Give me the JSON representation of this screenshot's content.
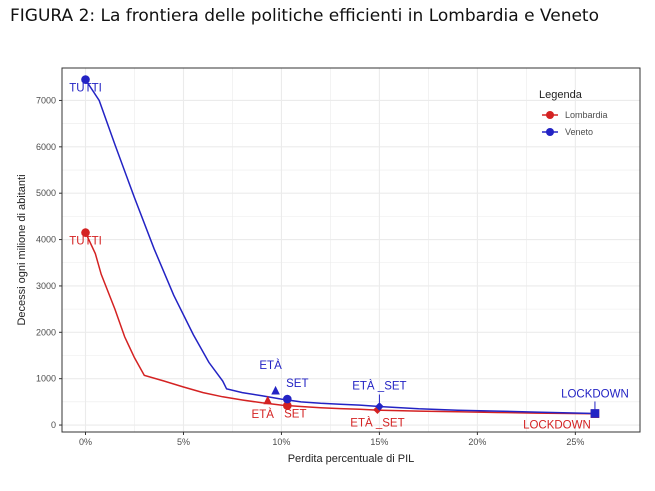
{
  "figure_title": "FIGURA 2: La frontiera delle politiche efficienti in Lombardia e Veneto",
  "colors": {
    "lombardia": "#d42222",
    "veneto": "#2323c4",
    "grid": "#ebebeb",
    "panel_border": "#333333"
  },
  "chart_data": {
    "type": "line",
    "title": "FIGURA 2: La frontiera delle politiche efficienti in Lombardia e Veneto",
    "xlabel": "Perdita percentuale di PIL",
    "ylabel": "Decessi ogni milione di abitanti",
    "xlim": [
      -1.2,
      28.3
    ],
    "ylim": [
      -150,
      7700
    ],
    "x_ticks": [
      0,
      5,
      10,
      15,
      20,
      25
    ],
    "x_tick_labels": [
      "0%",
      "5%",
      "10%",
      "15%",
      "20%",
      "25%"
    ],
    "y_ticks": [
      0,
      1000,
      2000,
      3000,
      4000,
      5000,
      6000,
      7000
    ],
    "y_tick_labels": [
      "0",
      "1000",
      "2000",
      "3000",
      "4000",
      "5000",
      "6000",
      "7000"
    ],
    "legend": {
      "title": "Legenda",
      "position": "top-right",
      "entries": [
        "Lombardia",
        "Veneto"
      ]
    },
    "series": [
      {
        "name": "Lombardia",
        "color": "#d42222",
        "curve": [
          [
            0,
            4150
          ],
          [
            0.5,
            3700
          ],
          [
            0.8,
            3250
          ],
          [
            1.5,
            2500
          ],
          [
            2,
            1900
          ],
          [
            2.5,
            1450
          ],
          [
            3,
            1070
          ],
          [
            4,
            950
          ],
          [
            5,
            820
          ],
          [
            6,
            700
          ],
          [
            7,
            610
          ],
          [
            8,
            540
          ],
          [
            9,
            480
          ],
          [
            10,
            430
          ],
          [
            11,
            400
          ],
          [
            12,
            375
          ],
          [
            13,
            355
          ],
          [
            14,
            340
          ],
          [
            15,
            320
          ],
          [
            17,
            300
          ],
          [
            19,
            285
          ],
          [
            21,
            270
          ],
          [
            23,
            258
          ],
          [
            26,
            245
          ]
        ],
        "points": [
          {
            "label": "TUTTI",
            "x": 0,
            "y": 4150,
            "marker": "circle"
          },
          {
            "label": "ETÀ",
            "x": 9.3,
            "y": 520,
            "marker": "triangle"
          },
          {
            "label": "SET",
            "x": 10.3,
            "y": 420,
            "marker": "circle"
          },
          {
            "label": "ETÀ _SET",
            "x": 14.9,
            "y": 330,
            "marker": "diamond"
          },
          {
            "label": "LOCKDOWN",
            "x": 26,
            "y": 245,
            "marker": "square"
          }
        ]
      },
      {
        "name": "Veneto",
        "color": "#2323c4",
        "curve": [
          [
            0,
            7450
          ],
          [
            0.7,
            7000
          ],
          [
            1.5,
            6050
          ],
          [
            2.5,
            4900
          ],
          [
            3.5,
            3800
          ],
          [
            4.5,
            2800
          ],
          [
            5.5,
            1950
          ],
          [
            6.3,
            1350
          ],
          [
            7,
            950
          ],
          [
            7.2,
            780
          ],
          [
            8,
            700
          ],
          [
            9,
            630
          ],
          [
            10,
            560
          ],
          [
            11,
            500
          ],
          [
            12,
            470
          ],
          [
            13,
            450
          ],
          [
            14,
            430
          ],
          [
            15,
            400
          ],
          [
            17,
            350
          ],
          [
            19,
            320
          ],
          [
            21,
            300
          ],
          [
            23,
            280
          ],
          [
            26,
            250
          ]
        ],
        "points": [
          {
            "label": "TUTTI",
            "x": 0,
            "y": 7450,
            "marker": "circle"
          },
          {
            "label": "ETÀ",
            "x": 9.7,
            "y": 730,
            "marker": "triangle"
          },
          {
            "label": "SET",
            "x": 10.3,
            "y": 560,
            "marker": "circle"
          },
          {
            "label": "ETÀ _SET",
            "x": 15,
            "y": 400,
            "marker": "diamond"
          },
          {
            "label": "LOCKDOWN",
            "x": 26,
            "y": 250,
            "marker": "square"
          }
        ]
      }
    ]
  }
}
